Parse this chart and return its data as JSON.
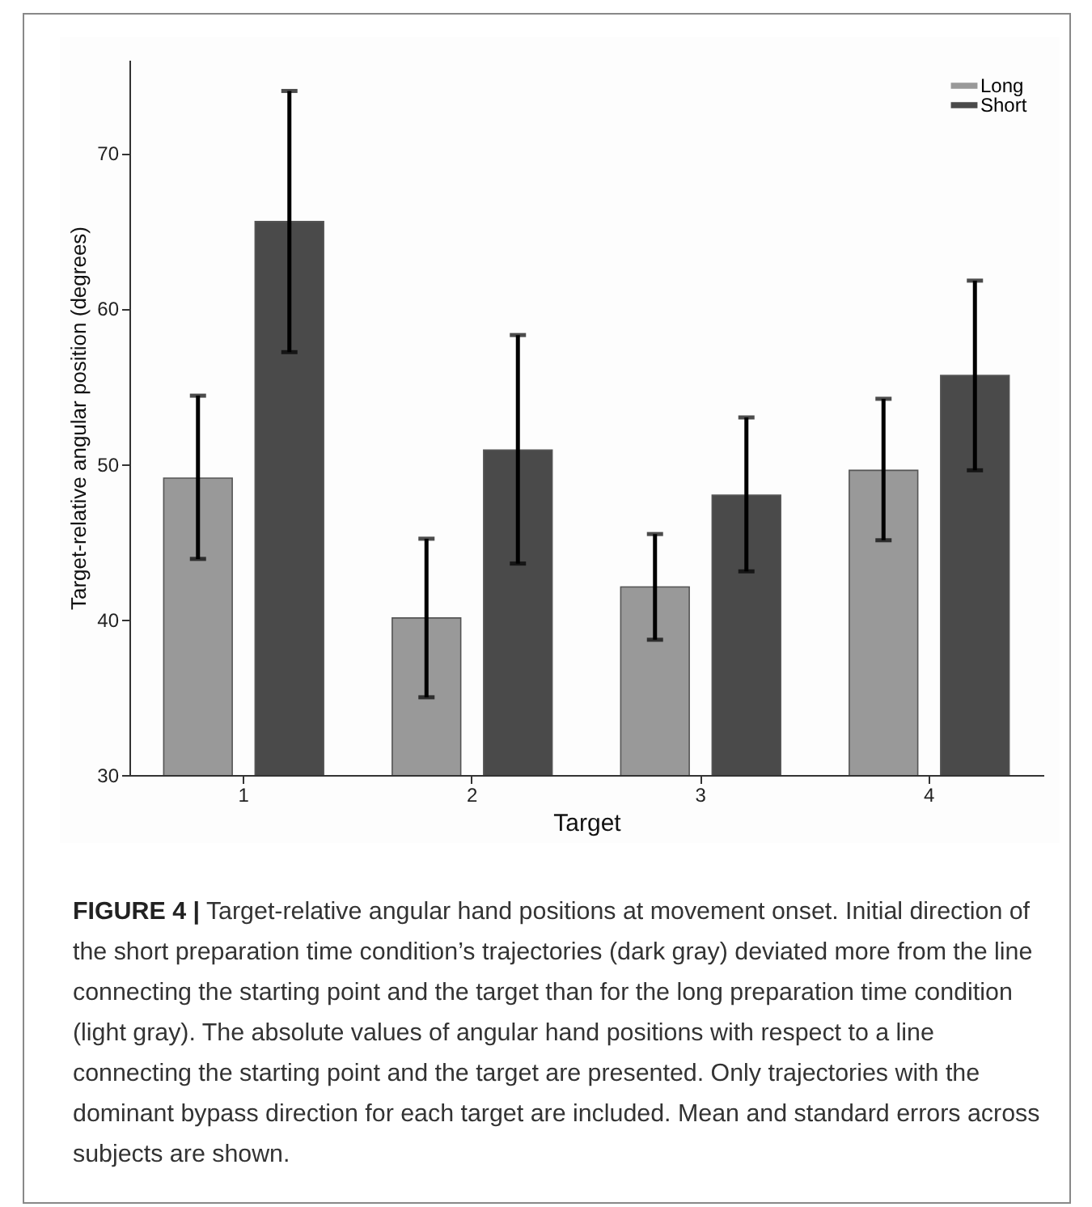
{
  "chart_data": {
    "type": "bar",
    "xlabel": "Target",
    "ylabel": "Target-relative angular position (degrees)",
    "categories": [
      "1",
      "2",
      "3",
      "4"
    ],
    "series": [
      {
        "name": "Long",
        "color": "#999999",
        "values": [
          49.1,
          40.1,
          42.1,
          49.6
        ],
        "errors": [
          [
            43.9,
            54.4
          ],
          [
            35.0,
            45.2
          ],
          [
            38.7,
            45.5
          ],
          [
            45.1,
            54.2
          ]
        ]
      },
      {
        "name": "Short",
        "color": "#4a4a4a",
        "values": [
          65.6,
          50.9,
          48.0,
          55.7
        ],
        "errors": [
          [
            57.2,
            74.0
          ],
          [
            43.6,
            58.3
          ],
          [
            43.1,
            53.0
          ],
          [
            49.6,
            61.8
          ]
        ]
      }
    ],
    "ylim": [
      30,
      76
    ],
    "yticks": [
      30,
      40,
      50,
      60,
      70
    ],
    "grid": false,
    "legend": "top right",
    "annotations": [
      "FIGURE 4 | Target-relative angular hand positions at movement onset. Initial direction of the short preparation time condition’s trajectories (dark gray) deviated more from the line connecting the starting point and the target than for the long preparation time condition (light gray). The absolute values of angular hand positions with respect to a line connecting the starting point and the target are presented. Only trajectories with the dominant bypass direction for each target are included. Mean and standard errors across subjects are shown."
    ]
  }
}
